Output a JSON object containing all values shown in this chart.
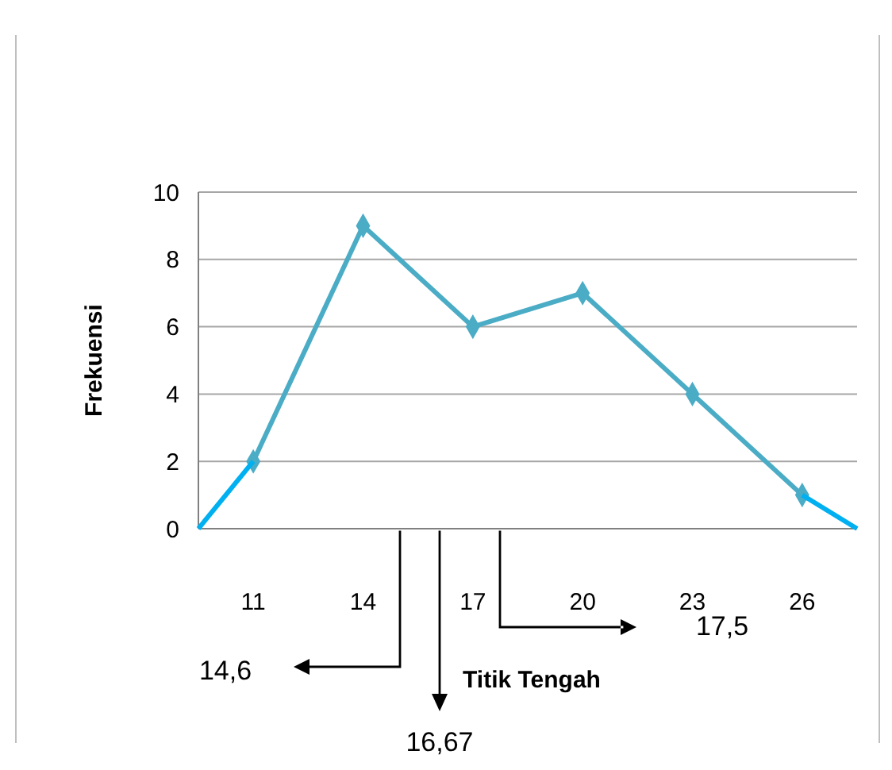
{
  "chart_data": {
    "type": "line",
    "xlabel": "Titik Tengah",
    "ylabel": "Frekuensi",
    "x": [
      11,
      14,
      17,
      20,
      23,
      26
    ],
    "series": [
      {
        "color": "#4bacc6",
        "values": [
          2,
          9,
          6,
          7,
          4,
          1
        ],
        "marker": "diamond"
      },
      {
        "color": "#00b0f0",
        "x": [
          9.5,
          11
        ],
        "values": [
          0,
          2
        ],
        "marker": "none"
      },
      {
        "color": "#00b0f0",
        "x": [
          26,
          27.5
        ],
        "values": [
          1,
          0
        ],
        "marker": "none"
      }
    ],
    "xlim": [
      9.5,
      27.5
    ],
    "xticks": [
      11,
      14,
      17,
      20,
      23,
      26
    ],
    "ylim": [
      0,
      10
    ],
    "yticks": [
      0,
      2,
      4,
      6,
      8,
      10
    ],
    "grid": "y",
    "annotations": [
      "14,6",
      "16,67",
      "17,5"
    ]
  }
}
